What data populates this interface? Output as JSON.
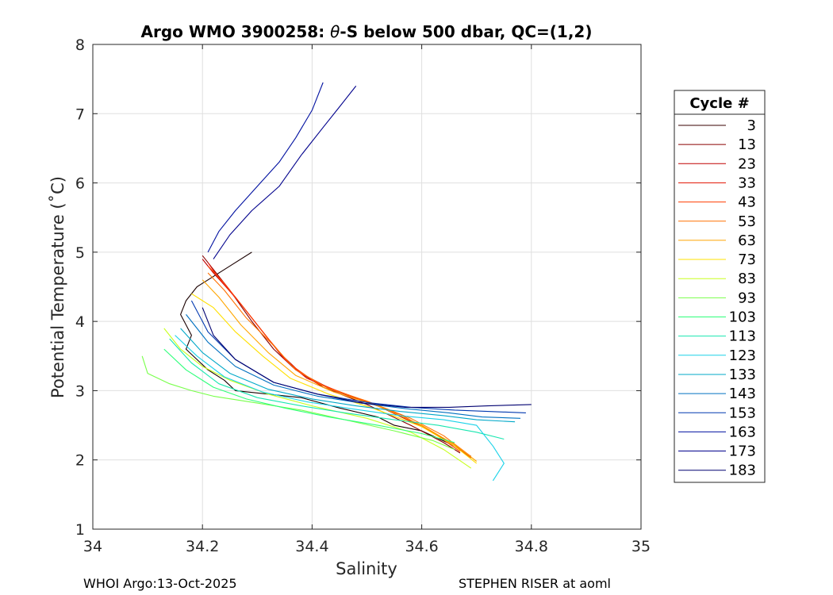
{
  "chart_data": {
    "type": "line",
    "title": "Argo WMO 3900258: θ-S below 500 dbar,  QC=(1,2)",
    "title_parts": {
      "prefix": "Argo WMO 3900258: ",
      "symbol": "θ",
      "suffix": "-S below 500 dbar,  QC=(1,2)"
    },
    "xlabel": "Salinity",
    "ylabel": "Potential Temperature (˚C)",
    "xlim": [
      34,
      35
    ],
    "ylim": [
      1,
      8
    ],
    "xticks": [
      34,
      34.2,
      34.4,
      34.6,
      34.8,
      35
    ],
    "xtick_labels": [
      "34",
      "34.2",
      "34.4",
      "34.6",
      "34.8",
      "35"
    ],
    "yticks": [
      1,
      2,
      3,
      4,
      5,
      6,
      7,
      8
    ],
    "ytick_labels": [
      "1",
      "2",
      "3",
      "4",
      "5",
      "6",
      "7",
      "8"
    ],
    "grid": true,
    "legend": {
      "title": "Cycle #",
      "placement": "outside-right",
      "entries": [
        {
          "label": "3",
          "color": "#3a0000"
        },
        {
          "label": "13",
          "color": "#8a0000"
        },
        {
          "label": "23",
          "color": "#c00000"
        },
        {
          "label": "33",
          "color": "#e41a0a"
        },
        {
          "label": "43",
          "color": "#ff3d00"
        },
        {
          "label": "53",
          "color": "#ff7000"
        },
        {
          "label": "63",
          "color": "#ffa500"
        },
        {
          "label": "73",
          "color": "#ffe000"
        },
        {
          "label": "83",
          "color": "#c8ff1e"
        },
        {
          "label": "93",
          "color": "#78ff4a"
        },
        {
          "label": "103",
          "color": "#2eff7a"
        },
        {
          "label": "113",
          "color": "#18e6b0"
        },
        {
          "label": "123",
          "color": "#1ad2e8"
        },
        {
          "label": "133",
          "color": "#00a8c8"
        },
        {
          "label": "143",
          "color": "#0070c0"
        },
        {
          "label": "153",
          "color": "#0038b0"
        },
        {
          "label": "163",
          "color": "#0010a0"
        },
        {
          "label": "173",
          "color": "#00008c"
        },
        {
          "label": "183",
          "color": "#000070"
        }
      ]
    },
    "series": [
      {
        "name": "3",
        "color": "#1a0000",
        "x": [
          34.29,
          34.25,
          34.21,
          34.19,
          34.17,
          34.16,
          34.18,
          34.17,
          34.21,
          34.24,
          34.26,
          34.38,
          34.45,
          34.52,
          34.55,
          34.6,
          34.66,
          34.69
        ],
        "y": [
          5.0,
          4.8,
          4.6,
          4.5,
          4.3,
          4.1,
          3.8,
          3.6,
          3.3,
          3.15,
          3.0,
          2.9,
          2.75,
          2.62,
          2.5,
          2.42,
          2.2,
          2.05
        ]
      },
      {
        "name": "13",
        "color": "#8a0000",
        "x": [
          34.2,
          34.22,
          34.25,
          34.29,
          34.33,
          34.37,
          34.42,
          34.5,
          34.58,
          34.64,
          34.67
        ],
        "y": [
          4.95,
          4.75,
          4.45,
          4.0,
          3.6,
          3.3,
          3.05,
          2.8,
          2.5,
          2.25,
          2.1
        ]
      },
      {
        "name": "23",
        "color": "#c00000",
        "x": [
          34.2,
          34.22,
          34.26,
          34.3,
          34.34,
          34.38,
          34.44,
          34.52,
          34.6,
          34.66,
          34.68
        ],
        "y": [
          4.9,
          4.7,
          4.35,
          3.95,
          3.55,
          3.25,
          3.0,
          2.78,
          2.48,
          2.22,
          2.08
        ]
      },
      {
        "name": "33",
        "color": "#e41a0a",
        "x": [
          34.21,
          34.23,
          34.27,
          34.31,
          34.35,
          34.39,
          34.46,
          34.54,
          34.61,
          34.66,
          34.69
        ],
        "y": [
          4.85,
          4.62,
          4.25,
          3.85,
          3.45,
          3.18,
          2.95,
          2.72,
          2.44,
          2.2,
          2.03
        ]
      },
      {
        "name": "43",
        "color": "#ff3d00",
        "x": [
          34.21,
          34.24,
          34.28,
          34.32,
          34.36,
          34.41,
          34.48,
          34.56,
          34.62,
          34.67
        ],
        "y": [
          4.8,
          4.55,
          4.15,
          3.75,
          3.38,
          3.1,
          2.9,
          2.66,
          2.4,
          2.12
        ]
      },
      {
        "name": "53",
        "color": "#ff7000",
        "x": [
          34.21,
          34.24,
          34.28,
          34.33,
          34.37,
          34.43,
          34.5,
          34.58,
          34.64,
          34.69
        ],
        "y": [
          4.7,
          4.45,
          4.05,
          3.65,
          3.3,
          3.03,
          2.85,
          2.6,
          2.35,
          2.05
        ]
      },
      {
        "name": "63",
        "color": "#ffa500",
        "x": [
          34.2,
          34.23,
          34.27,
          34.32,
          34.37,
          34.44,
          34.52,
          34.6,
          34.66,
          34.7
        ],
        "y": [
          4.6,
          4.35,
          3.95,
          3.55,
          3.22,
          2.98,
          2.78,
          2.5,
          2.22,
          1.98
        ]
      },
      {
        "name": "73",
        "color": "#ffe000",
        "x": [
          34.18,
          34.22,
          34.26,
          34.31,
          34.36,
          34.43,
          34.51,
          34.6,
          34.66,
          34.7
        ],
        "y": [
          4.4,
          4.2,
          3.85,
          3.5,
          3.18,
          2.95,
          2.75,
          2.48,
          2.2,
          1.95
        ]
      },
      {
        "name": "83",
        "color": "#c8ff1e",
        "x": [
          34.13,
          34.16,
          34.2,
          34.25,
          34.32,
          34.4,
          34.5,
          34.58,
          34.64,
          34.69
        ],
        "y": [
          3.9,
          3.6,
          3.35,
          3.15,
          2.95,
          2.78,
          2.6,
          2.4,
          2.15,
          1.88
        ]
      },
      {
        "name": "93",
        "color": "#78ff4a",
        "x": [
          34.09,
          34.1,
          34.14,
          34.18,
          34.22,
          34.3,
          34.38,
          34.46,
          34.55,
          34.62,
          34.66
        ],
        "y": [
          3.5,
          3.25,
          3.1,
          3.0,
          2.92,
          2.82,
          2.72,
          2.58,
          2.42,
          2.28,
          2.15
        ]
      },
      {
        "name": "103",
        "color": "#2eff7a",
        "x": [
          34.13,
          34.17,
          34.22,
          34.28,
          34.35,
          34.43,
          34.52,
          34.6,
          34.66
        ],
        "y": [
          3.6,
          3.3,
          3.05,
          2.88,
          2.75,
          2.62,
          2.5,
          2.38,
          2.25
        ]
      },
      {
        "name": "113",
        "color": "#18e6b0",
        "x": [
          34.14,
          34.18,
          34.23,
          34.3,
          34.38,
          34.46,
          34.55,
          34.63,
          34.7,
          34.75
        ],
        "y": [
          3.75,
          3.4,
          3.1,
          2.9,
          2.78,
          2.68,
          2.58,
          2.5,
          2.4,
          2.3
        ]
      },
      {
        "name": "123",
        "color": "#1ad2e8",
        "x": [
          34.15,
          34.19,
          34.24,
          34.31,
          34.39,
          34.47,
          34.56,
          34.64,
          34.7,
          34.73,
          34.75,
          34.73
        ],
        "y": [
          3.8,
          3.5,
          3.2,
          2.98,
          2.84,
          2.74,
          2.64,
          2.58,
          2.5,
          2.2,
          1.95,
          1.7
        ]
      },
      {
        "name": "133",
        "color": "#00a8c8",
        "x": [
          34.16,
          34.2,
          34.25,
          34.32,
          34.4,
          34.48,
          34.56,
          34.64,
          34.7,
          34.77
        ],
        "y": [
          3.9,
          3.55,
          3.25,
          3.02,
          2.88,
          2.78,
          2.7,
          2.64,
          2.58,
          2.55
        ]
      },
      {
        "name": "143",
        "color": "#0070c0",
        "x": [
          34.17,
          34.21,
          34.26,
          34.33,
          34.41,
          34.49,
          34.57,
          34.65,
          34.71,
          34.78
        ],
        "y": [
          4.1,
          3.7,
          3.35,
          3.08,
          2.92,
          2.82,
          2.74,
          2.68,
          2.62,
          2.6
        ]
      },
      {
        "name": "153",
        "color": "#0038b0",
        "x": [
          34.18,
          34.21,
          34.26,
          34.33,
          34.41,
          34.5,
          34.58,
          34.66,
          34.72,
          34.79
        ],
        "y": [
          4.3,
          3.85,
          3.45,
          3.12,
          2.95,
          2.83,
          2.76,
          2.72,
          2.7,
          2.68
        ]
      },
      {
        "name": "163",
        "color": "#0010a0",
        "x": [
          34.21,
          34.23,
          34.26,
          34.3,
          34.34,
          34.37,
          34.4,
          34.42
        ],
        "y": [
          5.0,
          5.3,
          5.6,
          5.95,
          6.3,
          6.65,
          7.05,
          7.45
        ]
      },
      {
        "name": "173",
        "color": "#00008c",
        "x": [
          34.22,
          34.25,
          34.29,
          34.34,
          34.38,
          34.42,
          34.45,
          34.48
        ],
        "y": [
          4.9,
          5.25,
          5.6,
          5.95,
          6.4,
          6.8,
          7.1,
          7.4
        ]
      },
      {
        "name": "183",
        "color": "#000070",
        "x": [
          34.2,
          34.22,
          34.26,
          34.33,
          34.41,
          34.49,
          34.57,
          34.65,
          34.72,
          34.8
        ],
        "y": [
          4.2,
          3.8,
          3.45,
          3.12,
          2.95,
          2.82,
          2.76,
          2.76,
          2.78,
          2.8
        ]
      }
    ]
  },
  "footer": {
    "left": "WHOI Argo:13-Oct-2025",
    "right": "STEPHEN RISER at aoml"
  }
}
